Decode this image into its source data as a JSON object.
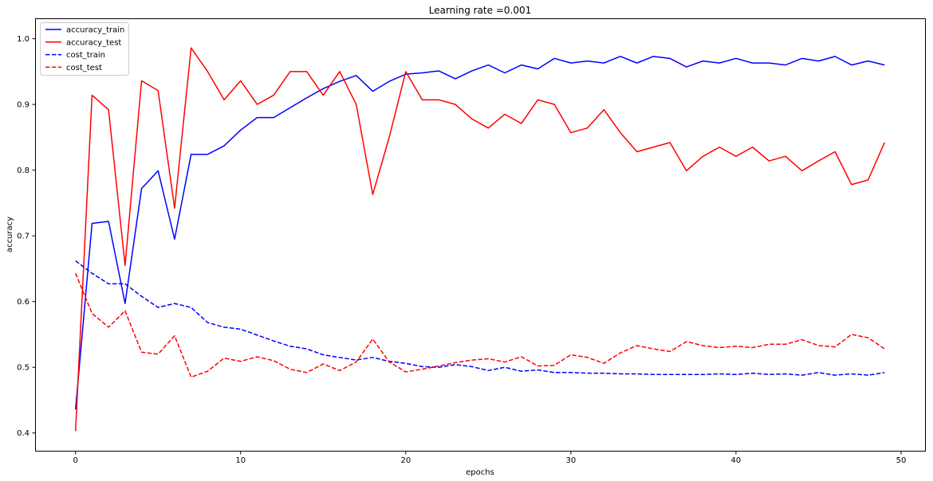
{
  "chart_data": {
    "type": "line",
    "title": "Learning rate =0.001",
    "xlabel": "epochs",
    "ylabel": "accuracy",
    "xlim": [
      -2.45,
      51.45
    ],
    "ylim": [
      0.373,
      1.031
    ],
    "xticks": [
      0,
      10,
      20,
      30,
      40,
      50
    ],
    "yticks": [
      0.4,
      0.5,
      0.6,
      0.7,
      0.8,
      0.9,
      1.0
    ],
    "ytick_labels": [
      "0.4",
      "0.5",
      "0.6",
      "0.7",
      "0.8",
      "0.9",
      "1.0"
    ],
    "grid": false,
    "legend_position": "upper-left",
    "x": [
      0,
      1,
      2,
      3,
      4,
      5,
      6,
      7,
      8,
      9,
      10,
      11,
      12,
      13,
      14,
      15,
      16,
      17,
      18,
      19,
      20,
      21,
      22,
      23,
      24,
      25,
      26,
      27,
      28,
      29,
      30,
      31,
      32,
      33,
      34,
      35,
      36,
      37,
      38,
      39,
      40,
      41,
      42,
      43,
      44,
      45,
      46,
      47,
      48,
      49
    ],
    "series": [
      {
        "name": "accuracy_train",
        "color": "#0000ff",
        "dash": "solid",
        "values": [
          0.436,
          0.719,
          0.722,
          0.597,
          0.772,
          0.799,
          0.695,
          0.824,
          0.824,
          0.837,
          0.861,
          0.88,
          0.88,
          0.895,
          0.91,
          0.924,
          0.935,
          0.944,
          0.92,
          0.935,
          0.946,
          0.948,
          0.951,
          0.939,
          0.951,
          0.96,
          0.948,
          0.96,
          0.954,
          0.97,
          0.963,
          0.966,
          0.963,
          0.973,
          0.963,
          0.973,
          0.97,
          0.957,
          0.966,
          0.963,
          0.97,
          0.963,
          0.963,
          0.96,
          0.97,
          0.966,
          0.973,
          0.96,
          0.966,
          0.96
        ]
      },
      {
        "name": "accuracy_test",
        "color": "#ff0000",
        "dash": "solid",
        "values": [
          0.403,
          0.914,
          0.892,
          0.655,
          0.936,
          0.921,
          0.742,
          0.986,
          0.95,
          0.907,
          0.936,
          0.9,
          0.914,
          0.95,
          0.95,
          0.914,
          0.95,
          0.9,
          0.763,
          0.85,
          0.95,
          0.907,
          0.907,
          0.9,
          0.878,
          0.864,
          0.885,
          0.871,
          0.907,
          0.9,
          0.857,
          0.864,
          0.892,
          0.857,
          0.828,
          0.835,
          0.842,
          0.799,
          0.821,
          0.835,
          0.821,
          0.835,
          0.814,
          0.821,
          0.799,
          0.814,
          0.828,
          0.778,
          0.785,
          0.842
        ]
      },
      {
        "name": "cost_train",
        "color": "#0000ff",
        "dash": "dashed",
        "values": [
          0.662,
          0.643,
          0.627,
          0.627,
          0.608,
          0.591,
          0.597,
          0.591,
          0.568,
          0.561,
          0.558,
          0.549,
          0.54,
          0.532,
          0.528,
          0.519,
          0.515,
          0.511,
          0.515,
          0.509,
          0.506,
          0.501,
          0.5,
          0.504,
          0.501,
          0.495,
          0.5,
          0.494,
          0.496,
          0.492,
          0.492,
          0.491,
          0.491,
          0.49,
          0.49,
          0.489,
          0.489,
          0.489,
          0.489,
          0.49,
          0.489,
          0.491,
          0.489,
          0.49,
          0.488,
          0.492,
          0.488,
          0.49,
          0.488,
          0.492
        ]
      },
      {
        "name": "cost_test",
        "color": "#ff0000",
        "dash": "dashed",
        "values": [
          0.643,
          0.582,
          0.561,
          0.586,
          0.523,
          0.52,
          0.548,
          0.485,
          0.494,
          0.514,
          0.509,
          0.516,
          0.51,
          0.497,
          0.492,
          0.505,
          0.495,
          0.508,
          0.543,
          0.508,
          0.493,
          0.497,
          0.502,
          0.507,
          0.511,
          0.513,
          0.508,
          0.516,
          0.502,
          0.503,
          0.519,
          0.515,
          0.506,
          0.522,
          0.533,
          0.528,
          0.524,
          0.539,
          0.533,
          0.53,
          0.532,
          0.53,
          0.535,
          0.535,
          0.542,
          0.533,
          0.531,
          0.55,
          0.545,
          0.528
        ]
      }
    ]
  }
}
